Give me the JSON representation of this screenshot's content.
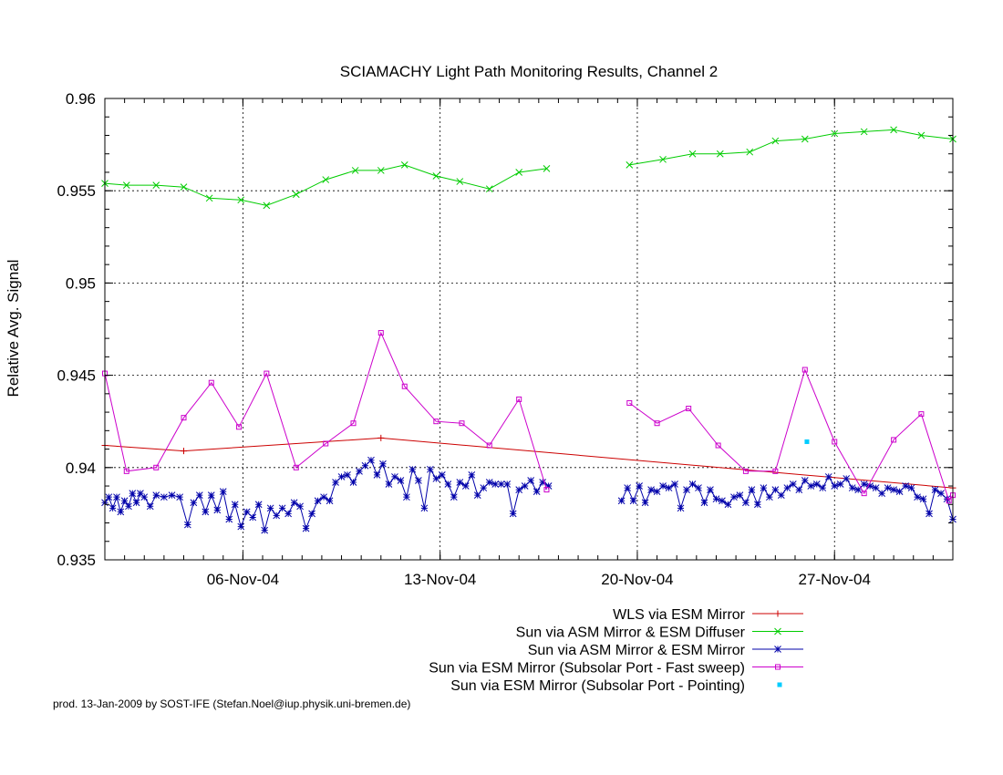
{
  "chart_data": {
    "type": "line",
    "title": "SCIAMACHY Light Path Monitoring Results, Channel 2",
    "xlabel": "",
    "ylabel": "Relative Avg. Signal",
    "ylim": [
      0.935,
      0.96
    ],
    "yticks": [
      0.935,
      0.94,
      0.945,
      0.95,
      0.955,
      0.96
    ],
    "ytick_labels": [
      "0.935",
      "0.94",
      "0.945",
      "0.95",
      "0.955",
      "0.96"
    ],
    "xlim": [
      0,
      43
    ],
    "xticks": [
      {
        "x": 7,
        "label": "06-Nov-04"
      },
      {
        "x": 17,
        "label": "13-Nov-04"
      },
      {
        "x": 27,
        "label": "20-Nov-04"
      },
      {
        "x": 37,
        "label": "27-Nov-04"
      }
    ],
    "grid": true,
    "legend_position": "bottom-right",
    "series": [
      {
        "name": "WLS via ESM Mirror",
        "color": "#cc0000",
        "marker": "plus",
        "points": [
          [
            0,
            0.9412
          ],
          [
            4,
            0.9409
          ],
          [
            14,
            0.9416
          ],
          [
            43,
            0.9389
          ]
        ]
      },
      {
        "name": "Sun via ASM Mirror & ESM Diffuser",
        "color": "#00cc00",
        "marker": "x",
        "points": [
          [
            0,
            0.9554
          ],
          [
            1.1,
            0.9553
          ],
          [
            2.6,
            0.9553
          ],
          [
            4,
            0.9552
          ],
          [
            5.3,
            0.9546
          ],
          [
            6.9,
            0.9545
          ],
          [
            8.2,
            0.9542
          ],
          [
            9.7,
            0.9548
          ],
          [
            11.2,
            0.9556
          ],
          [
            12.7,
            0.9561
          ],
          [
            14,
            0.9561
          ],
          [
            15.2,
            0.9564
          ],
          [
            16.8,
            0.9558
          ],
          [
            18,
            0.9555
          ],
          [
            19.5,
            0.9551
          ],
          [
            21,
            0.956
          ],
          [
            22.4,
            0.9562
          ],
          [
            null,
            null
          ],
          [
            26.6,
            0.9564
          ],
          [
            28.3,
            0.9567
          ],
          [
            29.8,
            0.957
          ],
          [
            31.2,
            0.957
          ],
          [
            32.7,
            0.9571
          ],
          [
            34,
            0.9577
          ],
          [
            35.5,
            0.9578
          ],
          [
            37,
            0.9581
          ],
          [
            38.5,
            0.9582
          ],
          [
            40,
            0.9583
          ],
          [
            41.4,
            0.958
          ],
          [
            43,
            0.9578
          ]
        ]
      },
      {
        "name": "Sun via ASM Mirror & ESM Mirror",
        "color": "#0000aa",
        "marker": "star",
        "points": [
          [
            0,
            0.9381
          ],
          [
            0.2,
            0.9384
          ],
          [
            0.4,
            0.9378
          ],
          [
            0.6,
            0.9384
          ],
          [
            0.8,
            0.9376
          ],
          [
            1.0,
            0.9382
          ],
          [
            1.2,
            0.9379
          ],
          [
            1.4,
            0.9386
          ],
          [
            1.6,
            0.9381
          ],
          [
            1.8,
            0.9386
          ],
          [
            2.0,
            0.9384
          ],
          [
            2.3,
            0.9379
          ],
          [
            2.6,
            0.9385
          ],
          [
            3.0,
            0.9384
          ],
          [
            3.4,
            0.9385
          ],
          [
            3.8,
            0.9384
          ],
          [
            4.2,
            0.9369
          ],
          [
            4.5,
            0.9381
          ],
          [
            4.8,
            0.9385
          ],
          [
            5.1,
            0.9376
          ],
          [
            5.4,
            0.9385
          ],
          [
            5.7,
            0.9377
          ],
          [
            6.0,
            0.9387
          ],
          [
            6.3,
            0.9372
          ],
          [
            6.6,
            0.938
          ],
          [
            6.9,
            0.9368
          ],
          [
            7.2,
            0.9376
          ],
          [
            7.5,
            0.9373
          ],
          [
            7.8,
            0.938
          ],
          [
            8.1,
            0.9366
          ],
          [
            8.4,
            0.9378
          ],
          [
            8.7,
            0.9374
          ],
          [
            9.0,
            0.9378
          ],
          [
            9.3,
            0.9375
          ],
          [
            9.6,
            0.9381
          ],
          [
            9.9,
            0.9379
          ],
          [
            10.2,
            0.9367
          ],
          [
            10.5,
            0.9375
          ],
          [
            10.8,
            0.9382
          ],
          [
            11.1,
            0.9384
          ],
          [
            11.4,
            0.9382
          ],
          [
            11.7,
            0.9392
          ],
          [
            12.0,
            0.9395
          ],
          [
            12.3,
            0.9396
          ],
          [
            12.6,
            0.9392
          ],
          [
            12.9,
            0.9398
          ],
          [
            13.2,
            0.9401
          ],
          [
            13.5,
            0.9404
          ],
          [
            13.8,
            0.9396
          ],
          [
            14.1,
            0.9402
          ],
          [
            14.4,
            0.9391
          ],
          [
            14.7,
            0.9395
          ],
          [
            15.0,
            0.9393
          ],
          [
            15.3,
            0.9384
          ],
          [
            15.6,
            0.9399
          ],
          [
            15.9,
            0.9393
          ],
          [
            16.2,
            0.9378
          ],
          [
            16.5,
            0.9399
          ],
          [
            16.8,
            0.9394
          ],
          [
            17.1,
            0.9396
          ],
          [
            17.4,
            0.9391
          ],
          [
            17.7,
            0.9384
          ],
          [
            18.0,
            0.9392
          ],
          [
            18.3,
            0.939
          ],
          [
            18.6,
            0.9396
          ],
          [
            18.9,
            0.9385
          ],
          [
            19.2,
            0.9389
          ],
          [
            19.5,
            0.9392
          ],
          [
            19.8,
            0.9391
          ],
          [
            20.1,
            0.9391
          ],
          [
            20.4,
            0.9391
          ],
          [
            20.7,
            0.9375
          ],
          [
            21.0,
            0.9388
          ],
          [
            21.3,
            0.939
          ],
          [
            21.6,
            0.9393
          ],
          [
            21.9,
            0.9387
          ],
          [
            22.2,
            0.9392
          ],
          [
            22.5,
            0.939
          ],
          [
            null,
            null
          ],
          [
            26.2,
            0.9382
          ],
          [
            26.5,
            0.9389
          ],
          [
            26.8,
            0.9382
          ],
          [
            27.1,
            0.939
          ],
          [
            27.4,
            0.9381
          ],
          [
            27.7,
            0.9388
          ],
          [
            28.0,
            0.9387
          ],
          [
            28.3,
            0.939
          ],
          [
            28.6,
            0.9389
          ],
          [
            28.9,
            0.9391
          ],
          [
            29.2,
            0.9378
          ],
          [
            29.5,
            0.9388
          ],
          [
            29.8,
            0.9391
          ],
          [
            30.1,
            0.9389
          ],
          [
            30.4,
            0.9381
          ],
          [
            30.7,
            0.9388
          ],
          [
            31.0,
            0.9383
          ],
          [
            31.3,
            0.9382
          ],
          [
            31.6,
            0.938
          ],
          [
            31.9,
            0.9384
          ],
          [
            32.2,
            0.9385
          ],
          [
            32.5,
            0.9381
          ],
          [
            32.8,
            0.9388
          ],
          [
            33.1,
            0.938
          ],
          [
            33.4,
            0.9389
          ],
          [
            33.7,
            0.9384
          ],
          [
            34.0,
            0.9388
          ],
          [
            34.3,
            0.9385
          ],
          [
            34.6,
            0.9389
          ],
          [
            34.9,
            0.9391
          ],
          [
            35.2,
            0.9388
          ],
          [
            35.5,
            0.9393
          ],
          [
            35.8,
            0.939
          ],
          [
            36.1,
            0.9391
          ],
          [
            36.4,
            0.9389
          ],
          [
            36.7,
            0.9395
          ],
          [
            37.0,
            0.939
          ],
          [
            37.3,
            0.9391
          ],
          [
            37.6,
            0.9394
          ],
          [
            37.9,
            0.9389
          ],
          [
            38.2,
            0.9388
          ],
          [
            38.5,
            0.9391
          ],
          [
            38.8,
            0.939
          ],
          [
            39.1,
            0.9389
          ],
          [
            39.4,
            0.9386
          ],
          [
            39.7,
            0.9389
          ],
          [
            40.0,
            0.9388
          ],
          [
            40.3,
            0.9387
          ],
          [
            40.6,
            0.939
          ],
          [
            40.9,
            0.9389
          ],
          [
            41.2,
            0.9384
          ],
          [
            41.5,
            0.9383
          ],
          [
            41.8,
            0.9375
          ],
          [
            42.1,
            0.9388
          ],
          [
            42.4,
            0.9386
          ],
          [
            42.7,
            0.9383
          ],
          [
            43.0,
            0.9372
          ]
        ]
      },
      {
        "name": "Sun via ESM Mirror (Subsolar Port - Fast sweep)",
        "color": "#cc00cc",
        "marker": "square",
        "points": [
          [
            0,
            0.9451
          ],
          [
            1.1,
            0.9398
          ],
          [
            2.6,
            0.94
          ],
          [
            4,
            0.9427
          ],
          [
            5.4,
            0.9446
          ],
          [
            6.8,
            0.9422
          ],
          [
            8.2,
            0.9451
          ],
          [
            9.7,
            0.94
          ],
          [
            11.2,
            0.9413
          ],
          [
            12.6,
            0.9424
          ],
          [
            14,
            0.9473
          ],
          [
            15.2,
            0.9444
          ],
          [
            16.8,
            0.9425
          ],
          [
            18.1,
            0.9424
          ],
          [
            19.5,
            0.9412
          ],
          [
            21.0,
            0.9437
          ],
          [
            22.4,
            0.9388
          ],
          [
            null,
            null
          ],
          [
            26.6,
            0.9435
          ],
          [
            28.0,
            0.9424
          ],
          [
            29.6,
            0.9432
          ],
          [
            31.1,
            0.9412
          ],
          [
            32.5,
            0.9398
          ],
          [
            34.0,
            0.9398
          ],
          [
            35.5,
            0.9453
          ],
          [
            37.0,
            0.9414
          ],
          [
            38.5,
            0.9386
          ],
          [
            40.0,
            0.9415
          ],
          [
            41.4,
            0.9429
          ],
          [
            42.8,
            0.9382
          ],
          [
            43.0,
            0.9385
          ]
        ]
      },
      {
        "name": "Sun via ESM Mirror (Subsolar Port - Pointing)",
        "color": "#00ccff",
        "marker": "dot",
        "points": [
          [
            35.6,
            0.9414
          ]
        ]
      }
    ]
  },
  "footer": {
    "note": "prod. 13-Jan-2009 by SOST-IFE (Stefan.Noel@iup.physik.uni-bremen.de)"
  }
}
